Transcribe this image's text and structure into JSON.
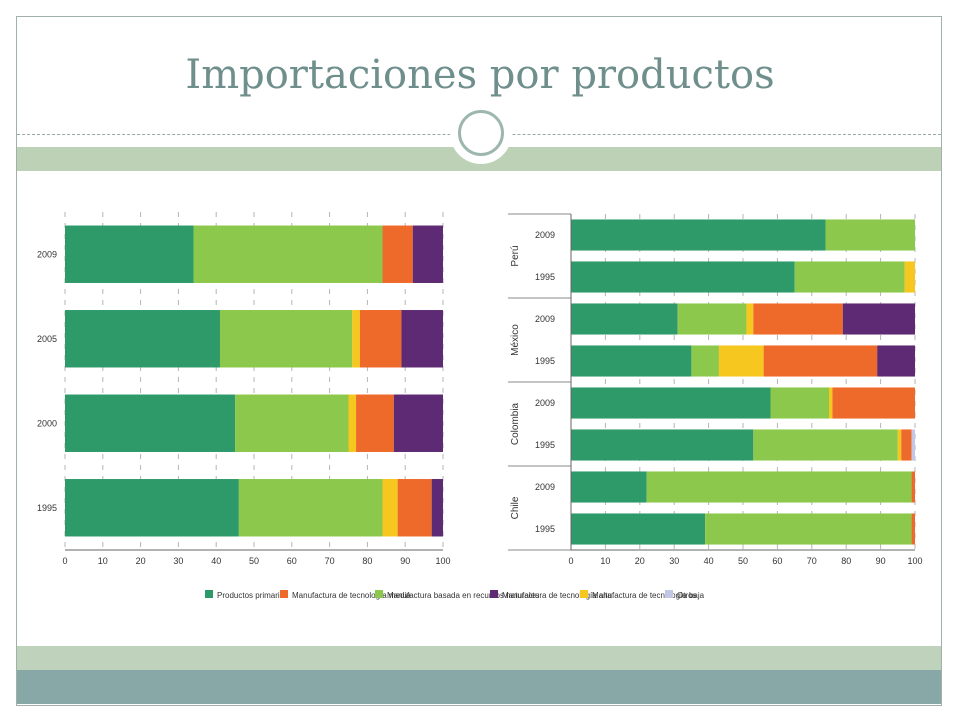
{
  "slide": {
    "title": "Importaciones por productos"
  },
  "colors": {
    "Productos primarios": "#2e9a6a",
    "Manufactura de tecnología media": "#ee6a2a",
    "Manufactura basada en recursos naturales": "#8cc84b",
    "Manufactura de tecnología alta": "#5e2a73",
    "Manufactura de tecnología baja": "#f6c71e",
    "Otros": "#c3c6e6"
  },
  "chart_data": [
    {
      "type": "bar",
      "orientation": "horizontal",
      "stacked": true,
      "categories": [
        "2009",
        "2005",
        "2000",
        "1995"
      ],
      "xlim": [
        0,
        100
      ],
      "xticks": [
        "0",
        "10",
        "20",
        "30",
        "40",
        "50",
        "60",
        "70",
        "80",
        "90",
        "100"
      ],
      "series": [
        {
          "name": "Productos primarios",
          "values": [
            34,
            41,
            45,
            46
          ]
        },
        {
          "name": "Manufactura basada en recursos naturales",
          "values": [
            50,
            35,
            30,
            38
          ]
        },
        {
          "name": "Manufactura de tecnología baja",
          "values": [
            0,
            2,
            2,
            4
          ]
        },
        {
          "name": "Manufactura de tecnología media",
          "values": [
            8,
            11,
            10,
            9
          ]
        },
        {
          "name": "Manufactura de tecnología alta",
          "values": [
            8,
            11,
            13,
            3
          ]
        }
      ]
    },
    {
      "type": "bar",
      "orientation": "horizontal",
      "stacked": true,
      "groups": [
        {
          "name": "Perú",
          "categories": [
            "2009",
            "1995"
          ]
        },
        {
          "name": "México",
          "categories": [
            "2009",
            "1995"
          ]
        },
        {
          "name": "Colombia",
          "categories": [
            "2009",
            "1995"
          ]
        },
        {
          "name": "Chile",
          "categories": [
            "2009",
            "1995"
          ]
        }
      ],
      "xlim": [
        0,
        100
      ],
      "xticks": [
        "0",
        "10",
        "20",
        "30",
        "40",
        "50",
        "60",
        "70",
        "80",
        "90",
        "100"
      ],
      "series": [
        {
          "name": "Productos primarios",
          "values": [
            74,
            65,
            31,
            35,
            58,
            53,
            22,
            39
          ]
        },
        {
          "name": "Manufactura basada en recursos naturales",
          "values": [
            26,
            32,
            20,
            8,
            17,
            42,
            77,
            60
          ]
        },
        {
          "name": "Manufactura de tecnología baja",
          "values": [
            0,
            3,
            2,
            13,
            1,
            1,
            0,
            0
          ]
        },
        {
          "name": "Manufactura de tecnología media",
          "values": [
            0,
            0,
            26,
            33,
            24,
            3,
            1,
            1
          ]
        },
        {
          "name": "Manufactura de tecnología alta",
          "values": [
            0,
            0,
            21,
            11,
            0,
            0,
            0,
            0
          ]
        },
        {
          "name": "Otros",
          "values": [
            0,
            0,
            0,
            0,
            0,
            1,
            0,
            0
          ]
        }
      ]
    }
  ],
  "legend": [
    {
      "label": "Productos primarios",
      "color": "#2e9a6a"
    },
    {
      "label": "Manufactura de tecnología media",
      "color": "#ee6a2a"
    },
    {
      "label": "Manufactura basada en recursos naturales",
      "color": "#8cc84b"
    },
    {
      "label": "Manufactura de tecnología alta",
      "color": "#5e2a73"
    },
    {
      "label": "Manufactura de tecnología baja",
      "color": "#f6c71e"
    },
    {
      "label": "Otros",
      "color": "#c3c6e6"
    }
  ]
}
